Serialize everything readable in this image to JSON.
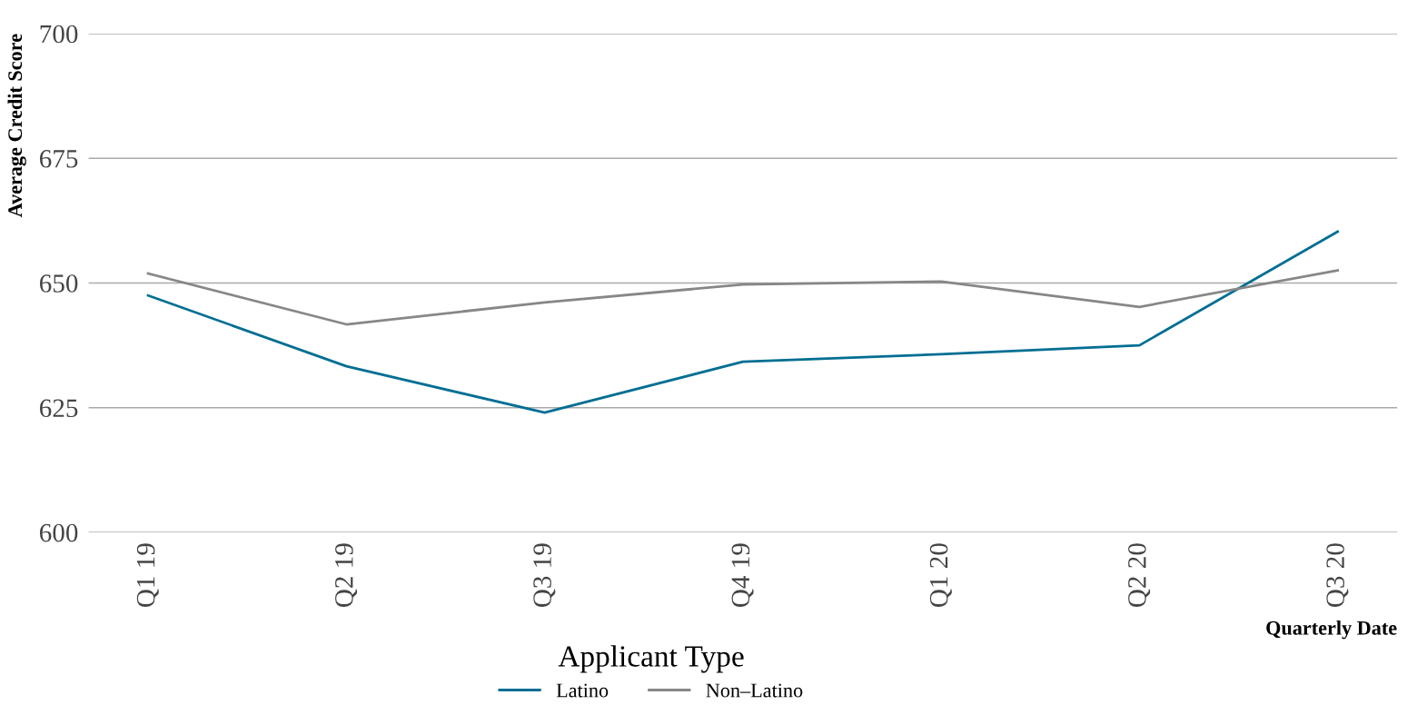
{
  "chart_data": {
    "type": "line",
    "xlabel": "Quarterly Date",
    "ylabel": "Average Credit Score",
    "legend_title": "Applicant Type",
    "categories": [
      "Q1 19",
      "Q2 19",
      "Q3 19",
      "Q4 19",
      "Q1 20",
      "Q2 20",
      "Q3 20"
    ],
    "series": [
      {
        "name": "Latino",
        "color": "#006e93",
        "values": [
          647.5,
          633.3,
          624.0,
          634.2,
          635.7,
          637.5,
          660.3
        ]
      },
      {
        "name": "Non–Latino",
        "color": "#878787",
        "values": [
          651.9,
          641.7,
          646.1,
          649.7,
          650.3,
          645.2,
          652.5
        ]
      }
    ],
    "ylim": [
      600,
      700
    ],
    "yticks": [
      600,
      625,
      650,
      675,
      700
    ],
    "grid": "y",
    "legend": "bottom",
    "line_style": "solid",
    "marker": "none"
  }
}
